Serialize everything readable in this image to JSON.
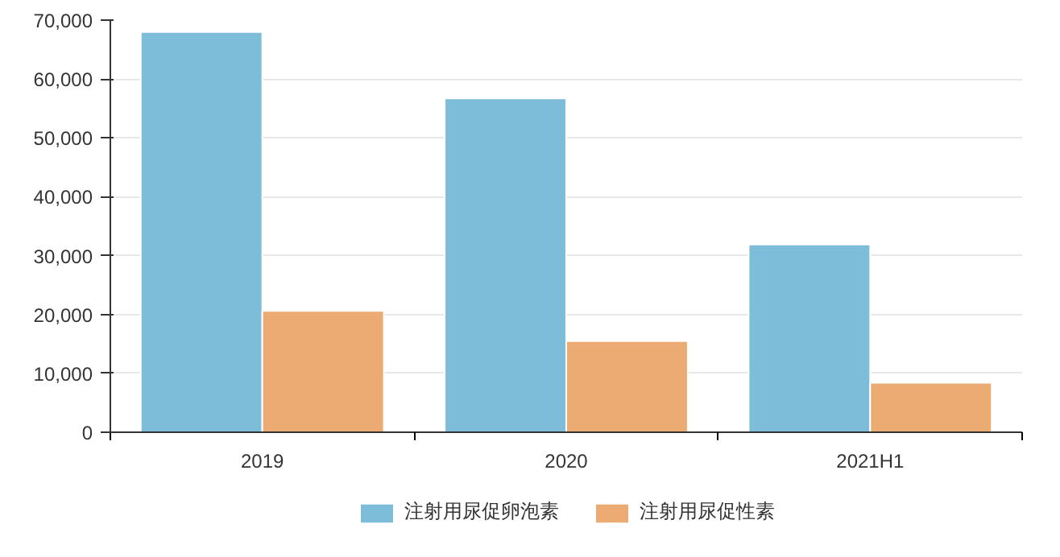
{
  "chart_data": {
    "type": "bar",
    "categories": [
      "2019",
      "2020",
      "2021H1"
    ],
    "series": [
      {
        "name": "注射用尿促卵泡素",
        "color": "#7ebdda",
        "values": [
          68000,
          56700,
          31900
        ]
      },
      {
        "name": "注射用尿促性素",
        "color": "#ecab72",
        "values": [
          20600,
          15500,
          8400
        ]
      }
    ],
    "ylim": [
      0,
      70000
    ],
    "yticks": [
      {
        "value": 0,
        "label": "0"
      },
      {
        "value": 10000,
        "label": "10,000"
      },
      {
        "value": 20000,
        "label": "20,000"
      },
      {
        "value": 30000,
        "label": "30,000"
      },
      {
        "value": 40000,
        "label": "40,000"
      },
      {
        "value": 50000,
        "label": "50,000"
      },
      {
        "value": 60000,
        "label": "60,000"
      },
      {
        "value": 70000,
        "label": "70,000"
      }
    ],
    "grid": "y",
    "legend": "bottom"
  }
}
